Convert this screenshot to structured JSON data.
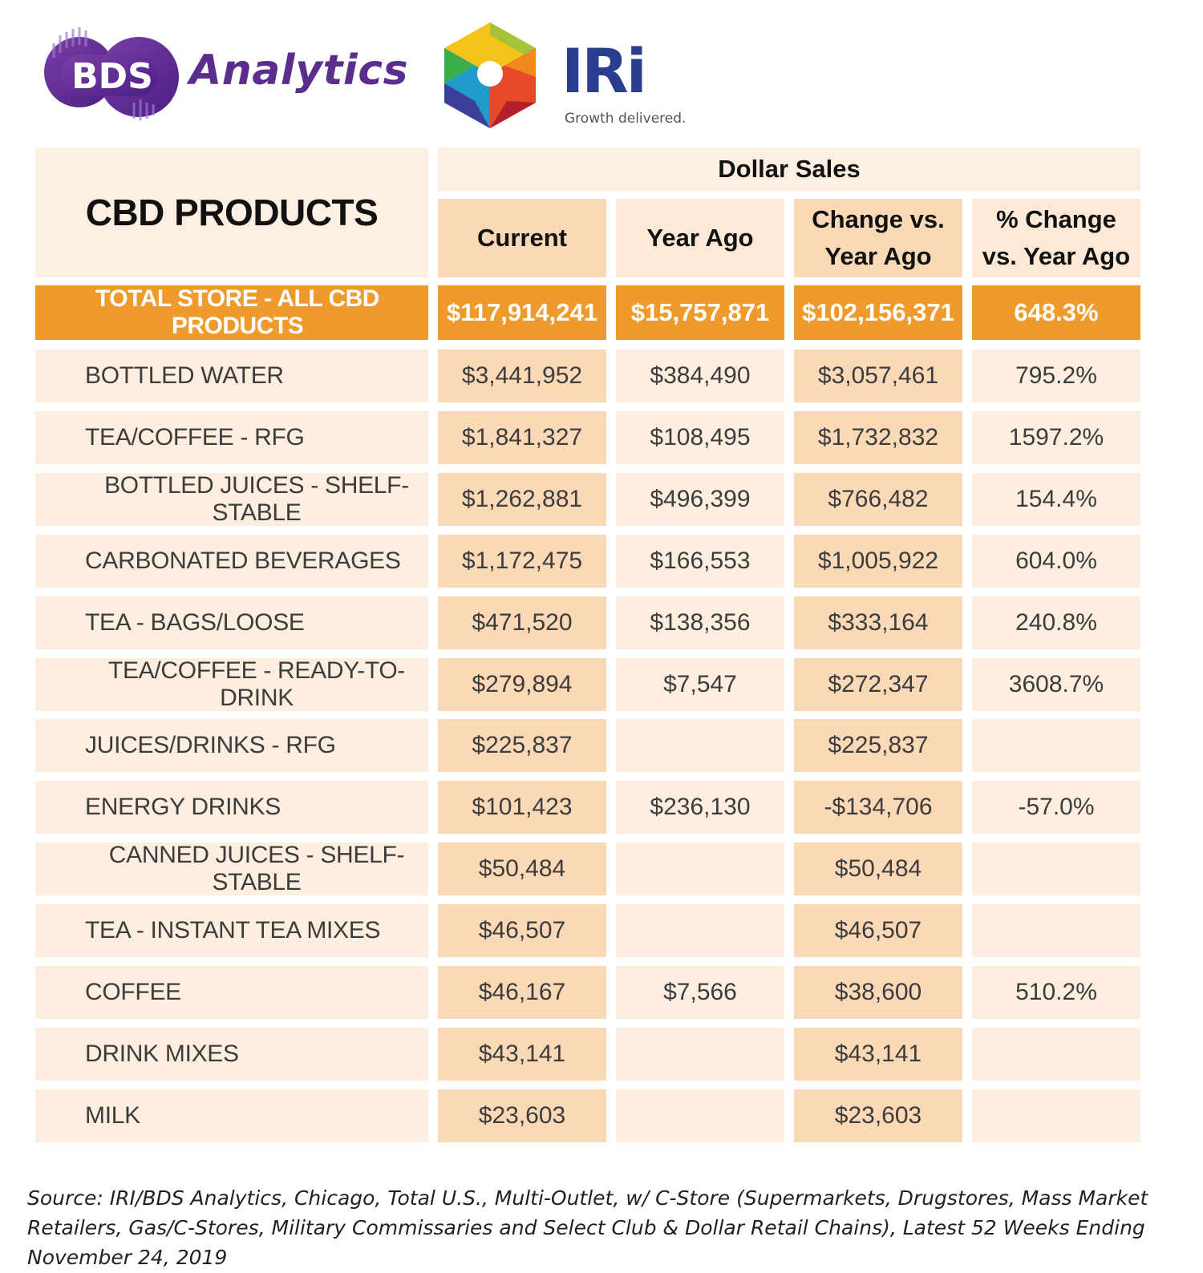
{
  "logos": {
    "bds": {
      "mark_text": "BDS",
      "word": "Analytics",
      "brand_color": "#5b2e8e"
    },
    "iri": {
      "word": "IRi",
      "tagline": "Growth delivered.",
      "brand_color": "#2a3d8f"
    }
  },
  "colors": {
    "header_light": "#fdf0e2",
    "header_dark": "#fbd9b7",
    "total_orange": "#ef9a2c",
    "row_light": "#fdeee0"
  },
  "chart_data": {
    "type": "table",
    "title": "CBD PRODUCTS",
    "group_header": "Dollar Sales",
    "columns": [
      "Current",
      "Year Ago",
      "Change vs. Year Ago",
      "% Change vs. Year Ago"
    ],
    "total": {
      "label": "TOTAL STORE - ALL CBD PRODUCTS",
      "values": [
        "$117,914,241",
        "$15,757,871",
        "$102,156,371",
        "648.3%"
      ]
    },
    "rows": [
      {
        "label": "BOTTLED WATER",
        "values": [
          "$3,441,952",
          "$384,490",
          "$3,057,461",
          "795.2%"
        ]
      },
      {
        "label": "TEA/COFFEE - RFG",
        "values": [
          "$1,841,327",
          "$108,495",
          "$1,732,832",
          "1597.2%"
        ]
      },
      {
        "label": "BOTTLED JUICES - SHELF-STABLE",
        "values": [
          "$1,262,881",
          "$496,399",
          "$766,482",
          "154.4%"
        ]
      },
      {
        "label": "CARBONATED BEVERAGES",
        "values": [
          "$1,172,475",
          "$166,553",
          "$1,005,922",
          "604.0%"
        ]
      },
      {
        "label": "TEA - BAGS/LOOSE",
        "values": [
          "$471,520",
          "$138,356",
          "$333,164",
          "240.8%"
        ]
      },
      {
        "label": "TEA/COFFEE - READY-TO-DRINK",
        "values": [
          "$279,894",
          "$7,547",
          "$272,347",
          "3608.7%"
        ]
      },
      {
        "label": "JUICES/DRINKS - RFG",
        "values": [
          "$225,837",
          "",
          "$225,837",
          ""
        ]
      },
      {
        "label": "ENERGY DRINKS",
        "values": [
          "$101,423",
          "$236,130",
          "-$134,706",
          "-57.0%"
        ]
      },
      {
        "label": "CANNED JUICES - SHELF-STABLE",
        "values": [
          "$50,484",
          "",
          "$50,484",
          ""
        ]
      },
      {
        "label": "TEA - INSTANT TEA MIXES",
        "values": [
          "$46,507",
          "",
          "$46,507",
          ""
        ]
      },
      {
        "label": "COFFEE",
        "values": [
          "$46,167",
          "$7,566",
          "$38,600",
          "510.2%"
        ]
      },
      {
        "label": "DRINK MIXES",
        "values": [
          "$43,141",
          "",
          "$43,141",
          ""
        ]
      },
      {
        "label": "MILK",
        "values": [
          "$23,603",
          "",
          "$23,603",
          ""
        ]
      }
    ]
  },
  "source": "Source: IRI/BDS Analytics, Chicago, Total U.S., Multi-Outlet, w/ C-Store (Supermarkets, Drugstores, Mass Market Retailers, Gas/C-Stores, Military Commissaries and Select Club & Dollar Retail Chains), Latest 52 Weeks Ending November 24, 2019"
}
